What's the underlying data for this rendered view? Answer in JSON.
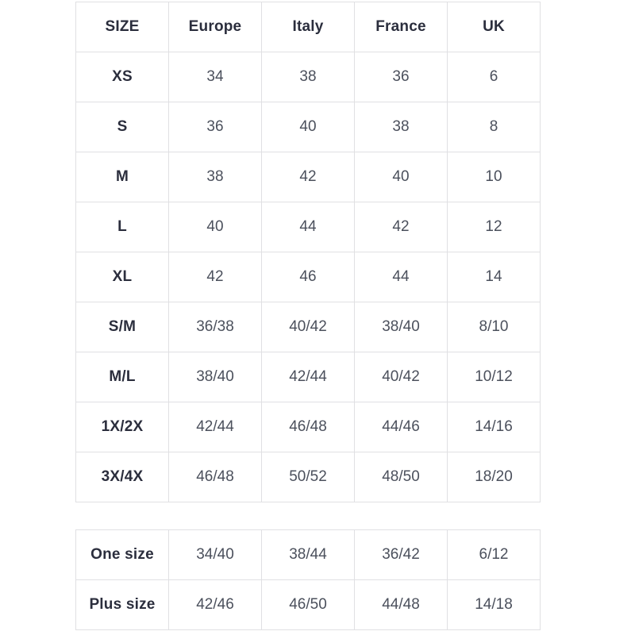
{
  "colors": {
    "border": "#e0e0e3",
    "header_text": "#2b2e3d",
    "cell_text": "#4b505c",
    "background": "#ffffff"
  },
  "size_table": {
    "headers": [
      "SIZE",
      "Europe",
      "Italy",
      "France",
      "UK"
    ],
    "rows": [
      {
        "label": "XS",
        "values": [
          "34",
          "38",
          "36",
          "6"
        ]
      },
      {
        "label": "S",
        "values": [
          "36",
          "40",
          "38",
          "8"
        ]
      },
      {
        "label": "M",
        "values": [
          "38",
          "42",
          "40",
          "10"
        ]
      },
      {
        "label": "L",
        "values": [
          "40",
          "44",
          "42",
          "12"
        ]
      },
      {
        "label": "XL",
        "values": [
          "42",
          "46",
          "44",
          "14"
        ]
      },
      {
        "label": "S/M",
        "values": [
          "36/38",
          "40/42",
          "38/40",
          "8/10"
        ]
      },
      {
        "label": "M/L",
        "values": [
          "38/40",
          "42/44",
          "40/42",
          "10/12"
        ]
      },
      {
        "label": "1X/2X",
        "values": [
          "42/44",
          "46/48",
          "44/46",
          "14/16"
        ]
      },
      {
        "label": "3X/4X",
        "values": [
          "46/48",
          "50/52",
          "48/50",
          "18/20"
        ]
      }
    ]
  },
  "special_size_table": {
    "rows": [
      {
        "label": "One size",
        "values": [
          "34/40",
          "38/44",
          "36/42",
          "6/12"
        ]
      },
      {
        "label": "Plus size",
        "values": [
          "42/46",
          "46/50",
          "44/48",
          "14/18"
        ]
      }
    ]
  }
}
